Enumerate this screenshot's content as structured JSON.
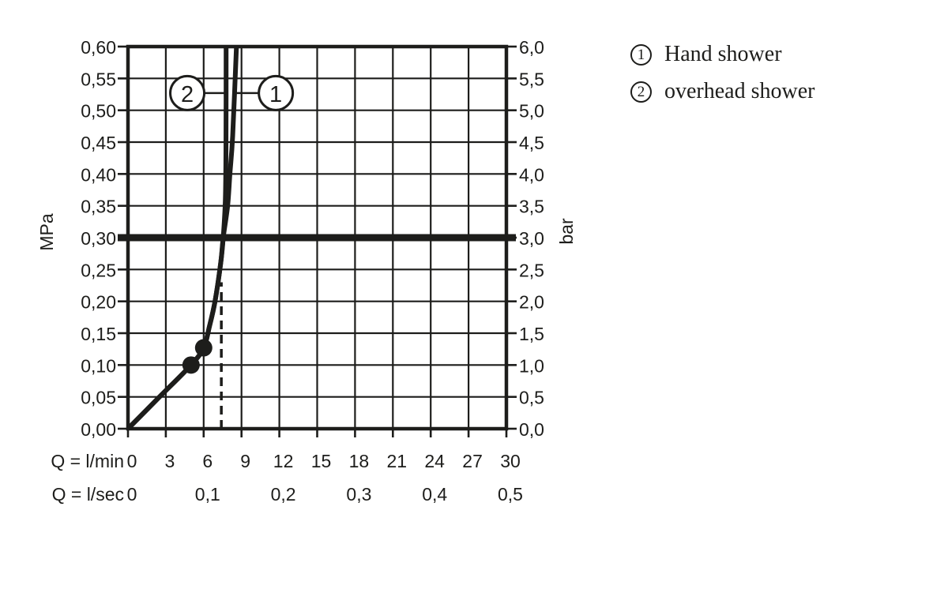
{
  "colors": {
    "ink": "#1d1d1b",
    "background": "#ffffff"
  },
  "legend": {
    "items": [
      {
        "number": "1",
        "label": "Hand shower"
      },
      {
        "number": "2",
        "label": "overhead shower"
      }
    ]
  },
  "chart_data": {
    "type": "line",
    "title": "",
    "grid": "on",
    "x_axis": {
      "caption_min": "Q = l/min",
      "caption_sec": "Q = l/sec",
      "range_lmin": [
        0,
        30
      ],
      "lmin_ticks": [
        {
          "v": 0,
          "label": "0"
        },
        {
          "v": 3,
          "label": "3"
        },
        {
          "v": 6,
          "label": "6"
        },
        {
          "v": 9,
          "label": "9"
        },
        {
          "v": 12,
          "label": "12"
        },
        {
          "v": 15,
          "label": "15"
        },
        {
          "v": 18,
          "label": "18"
        },
        {
          "v": 21,
          "label": "21"
        },
        {
          "v": 24,
          "label": "24"
        },
        {
          "v": 27,
          "label": "27"
        },
        {
          "v": 30,
          "label": "30"
        }
      ],
      "lsec_ticks": [
        {
          "lmin": 0,
          "label": "0"
        },
        {
          "lmin": 6,
          "label": "0,1"
        },
        {
          "lmin": 12,
          "label": "0,2"
        },
        {
          "lmin": 18,
          "label": "0,3"
        },
        {
          "lmin": 24,
          "label": "0,4"
        },
        {
          "lmin": 30,
          "label": "0,5"
        }
      ]
    },
    "y_axis_left": {
      "unit": "MPa",
      "range": [
        0,
        0.6
      ],
      "ticks": [
        {
          "v": 0.6,
          "label": "0,60"
        },
        {
          "v": 0.55,
          "label": "0,55"
        },
        {
          "v": 0.5,
          "label": "0,50"
        },
        {
          "v": 0.45,
          "label": "0,45"
        },
        {
          "v": 0.4,
          "label": "0,40"
        },
        {
          "v": 0.35,
          "label": "0,35"
        },
        {
          "v": 0.3,
          "label": "0,30"
        },
        {
          "v": 0.25,
          "label": "0,25"
        },
        {
          "v": 0.2,
          "label": "0,20"
        },
        {
          "v": 0.15,
          "label": "0,15"
        },
        {
          "v": 0.1,
          "label": "0,10"
        },
        {
          "v": 0.05,
          "label": "0,05"
        },
        {
          "v": 0.0,
          "label": "0,00"
        }
      ]
    },
    "y_axis_right": {
      "unit": "bar",
      "ticks": [
        {
          "v": 0.6,
          "label": "6,0"
        },
        {
          "v": 0.55,
          "label": "5,5"
        },
        {
          "v": 0.5,
          "label": "5,0"
        },
        {
          "v": 0.45,
          "label": "4,5"
        },
        {
          "v": 0.4,
          "label": "4,0"
        },
        {
          "v": 0.35,
          "label": "3,5"
        },
        {
          "v": 0.3,
          "label": "3,0"
        },
        {
          "v": 0.25,
          "label": "2,5"
        },
        {
          "v": 0.2,
          "label": "2,0"
        },
        {
          "v": 0.15,
          "label": "1,5"
        },
        {
          "v": 0.1,
          "label": "1,0"
        },
        {
          "v": 0.05,
          "label": "0,5"
        },
        {
          "v": 0.0,
          "label": "0,0"
        }
      ]
    },
    "reference_line_mpa": 0.3,
    "dashed_guide": {
      "lmin": 7.4,
      "mpa_from": 0.0,
      "mpa_to": 0.23
    },
    "series": [
      {
        "id": "1",
        "name": "Hand shower",
        "points": [
          [
            0,
            0
          ],
          [
            2.5,
            0.05
          ],
          [
            5,
            0.1
          ],
          [
            6,
            0.127
          ],
          [
            6.45,
            0.16
          ],
          [
            6.9,
            0.2
          ],
          [
            7.35,
            0.26
          ],
          [
            7.55,
            0.3
          ],
          [
            7.9,
            0.35
          ],
          [
            8.08,
            0.4
          ],
          [
            8.3,
            0.46
          ],
          [
            8.6,
            0.6
          ]
        ]
      },
      {
        "id": "2",
        "name": "overhead shower",
        "points": [
          [
            0,
            0
          ],
          [
            2.5,
            0.05
          ],
          [
            5,
            0.1
          ],
          [
            6,
            0.127
          ],
          [
            6.45,
            0.16
          ],
          [
            6.9,
            0.2
          ],
          [
            7.35,
            0.26
          ],
          [
            7.55,
            0.3
          ],
          [
            7.72,
            0.36
          ],
          [
            7.77,
            0.45
          ],
          [
            7.78,
            0.6
          ]
        ]
      }
    ],
    "marker_points": [
      [
        5,
        0.1
      ],
      [
        6,
        0.127
      ]
    ],
    "callouts": [
      {
        "label": "2",
        "center_lmin": 4.7,
        "center_mpa": 0.527,
        "attach_lmin": 7.77
      },
      {
        "label": "1",
        "center_lmin": 11.72,
        "center_mpa": 0.527,
        "attach_lmin": 8.45
      }
    ]
  }
}
